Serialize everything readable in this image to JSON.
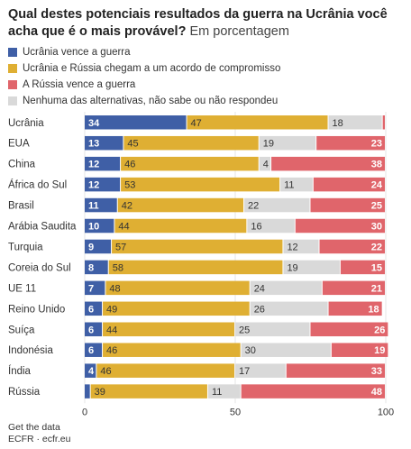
{
  "title": {
    "main": "Qual destes potenciais resultados da guerra na Ucrânia você acha que é o mais provável?",
    "sub": "Em porcentagem"
  },
  "source": {
    "line1": "Get the data",
    "line2": "ECFR · ecfr.eu"
  },
  "colors": {
    "ukraine_wins": "#3f5fa6",
    "compromise": "#dfaf33",
    "none": "#d9d9d9",
    "russia_wins": "#e0656b"
  },
  "chart_data": {
    "type": "bar",
    "orientation": "horizontal",
    "stacked": true,
    "xlim": [
      0,
      100
    ],
    "x_ticks": [
      "0",
      "50",
      "100"
    ],
    "legend_position": "top",
    "categories": [
      "Ucrânia",
      "EUA",
      "China",
      "África do Sul",
      "Brasil",
      "Arábia Saudita",
      "Turquia",
      "Coreia do Sul",
      "UE 11",
      "Reino Unido",
      "Suíça",
      "Indonésia",
      "Índia",
      "Rússia"
    ],
    "series": [
      {
        "name": "Ucrânia vence a guerra",
        "values": [
          34,
          13,
          12,
          12,
          11,
          10,
          9,
          8,
          7,
          6,
          6,
          6,
          4,
          2
        ]
      },
      {
        "name": "Ucrânia e Rússia chegam a um acordo de compromisso",
        "values": [
          47,
          45,
          46,
          53,
          42,
          44,
          57,
          58,
          48,
          49,
          44,
          46,
          46,
          39
        ]
      },
      {
        "name": "Nenhuma das alternativas, não sabe ou não respondeu",
        "values": [
          18,
          19,
          4,
          11,
          22,
          16,
          12,
          19,
          24,
          26,
          25,
          30,
          17,
          11
        ]
      },
      {
        "name": "A Rússia vence a guerra",
        "values": [
          1,
          23,
          38,
          24,
          25,
          30,
          22,
          15,
          21,
          18,
          26,
          19,
          33,
          48
        ]
      }
    ],
    "data_labels": [
      [
        "34",
        "47",
        "18",
        ""
      ],
      [
        "13",
        "45",
        "19",
        "23"
      ],
      [
        "12",
        "46",
        "4",
        "38"
      ],
      [
        "12",
        "53",
        "11",
        "24"
      ],
      [
        "11",
        "42",
        "22",
        "25"
      ],
      [
        "10",
        "44",
        "16",
        "30"
      ],
      [
        "9",
        "57",
        "12",
        "22"
      ],
      [
        "8",
        "58",
        "19",
        "15"
      ],
      [
        "7",
        "48",
        "24",
        "21"
      ],
      [
        "6",
        "49",
        "26",
        "18"
      ],
      [
        "6",
        "44",
        "25",
        "26"
      ],
      [
        "6",
        "46",
        "30",
        "19"
      ],
      [
        "4",
        "46",
        "17",
        "33"
      ],
      [
        "",
        "39",
        "11",
        "48"
      ]
    ]
  }
}
